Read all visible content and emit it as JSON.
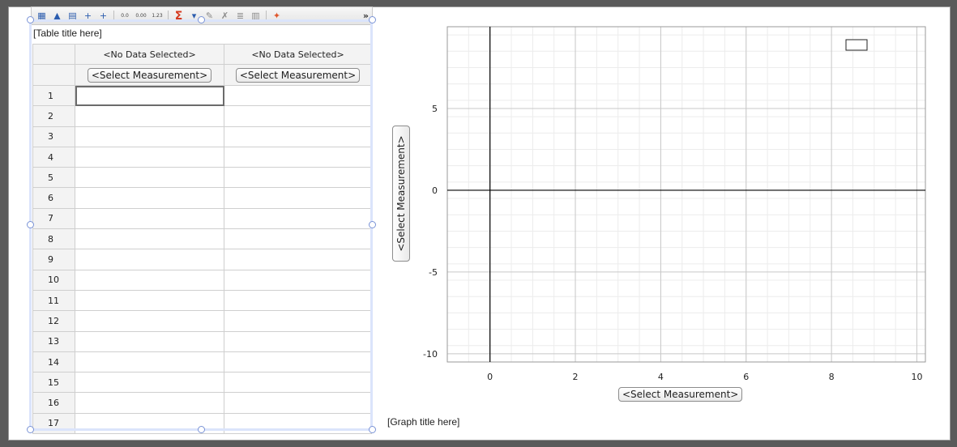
{
  "toolbar": {
    "buttons": [
      {
        "icon": "insert-column-icon",
        "glyph": "▦"
      },
      {
        "icon": "insert-column-left-icon",
        "glyph": "▲"
      },
      {
        "icon": "insert-row-icon",
        "glyph": "▤"
      },
      {
        "icon": "add-column-right-icon",
        "glyph": "+"
      },
      {
        "icon": "add-column-left-icon",
        "glyph": "+"
      },
      {
        "icon": "increase-decimal-icon",
        "glyph": "0.0"
      },
      {
        "icon": "decrease-decimal-icon",
        "glyph": "0.00"
      },
      {
        "icon": "number-format-icon",
        "glyph": "1.23"
      },
      {
        "icon": "sigma-icon",
        "glyph": "Σ"
      },
      {
        "icon": "dropdown-arrow-icon",
        "glyph": "▾"
      },
      {
        "icon": "edit-formula-icon",
        "glyph": "✎"
      },
      {
        "icon": "clear-icon",
        "glyph": "✗"
      },
      {
        "icon": "list-icon",
        "glyph": "≣"
      },
      {
        "icon": "split-icon",
        "glyph": "▥"
      },
      {
        "icon": "pin-icon",
        "glyph": "✦"
      }
    ],
    "more": "»"
  },
  "table": {
    "title": "[Table title here]",
    "columns": [
      {
        "header": "<No Data Selected>",
        "select_label": "<Select Measurement>"
      },
      {
        "header": "<No Data Selected>",
        "select_label": "<Select Measurement>"
      }
    ],
    "rows": [
      "1",
      "2",
      "3",
      "4",
      "5",
      "6",
      "7",
      "8",
      "9",
      "10",
      "11",
      "12",
      "13",
      "14",
      "15",
      "16",
      "17"
    ]
  },
  "graph": {
    "title": "[Graph title here]",
    "x_button": "<Select Measurement>",
    "y_button": "<Select Measurement>"
  },
  "chart_data": {
    "type": "scatter",
    "series": [],
    "xlim": [
      -1,
      10.2
    ],
    "ylim": [
      -10.5,
      10
    ],
    "x_ticks": [
      "0",
      "2",
      "4",
      "6",
      "8",
      "10"
    ],
    "y_ticks": [
      "5",
      "0",
      "-5",
      "-10"
    ],
    "grid": true,
    "legend": "top-right",
    "xlabel": "",
    "ylabel": ""
  }
}
